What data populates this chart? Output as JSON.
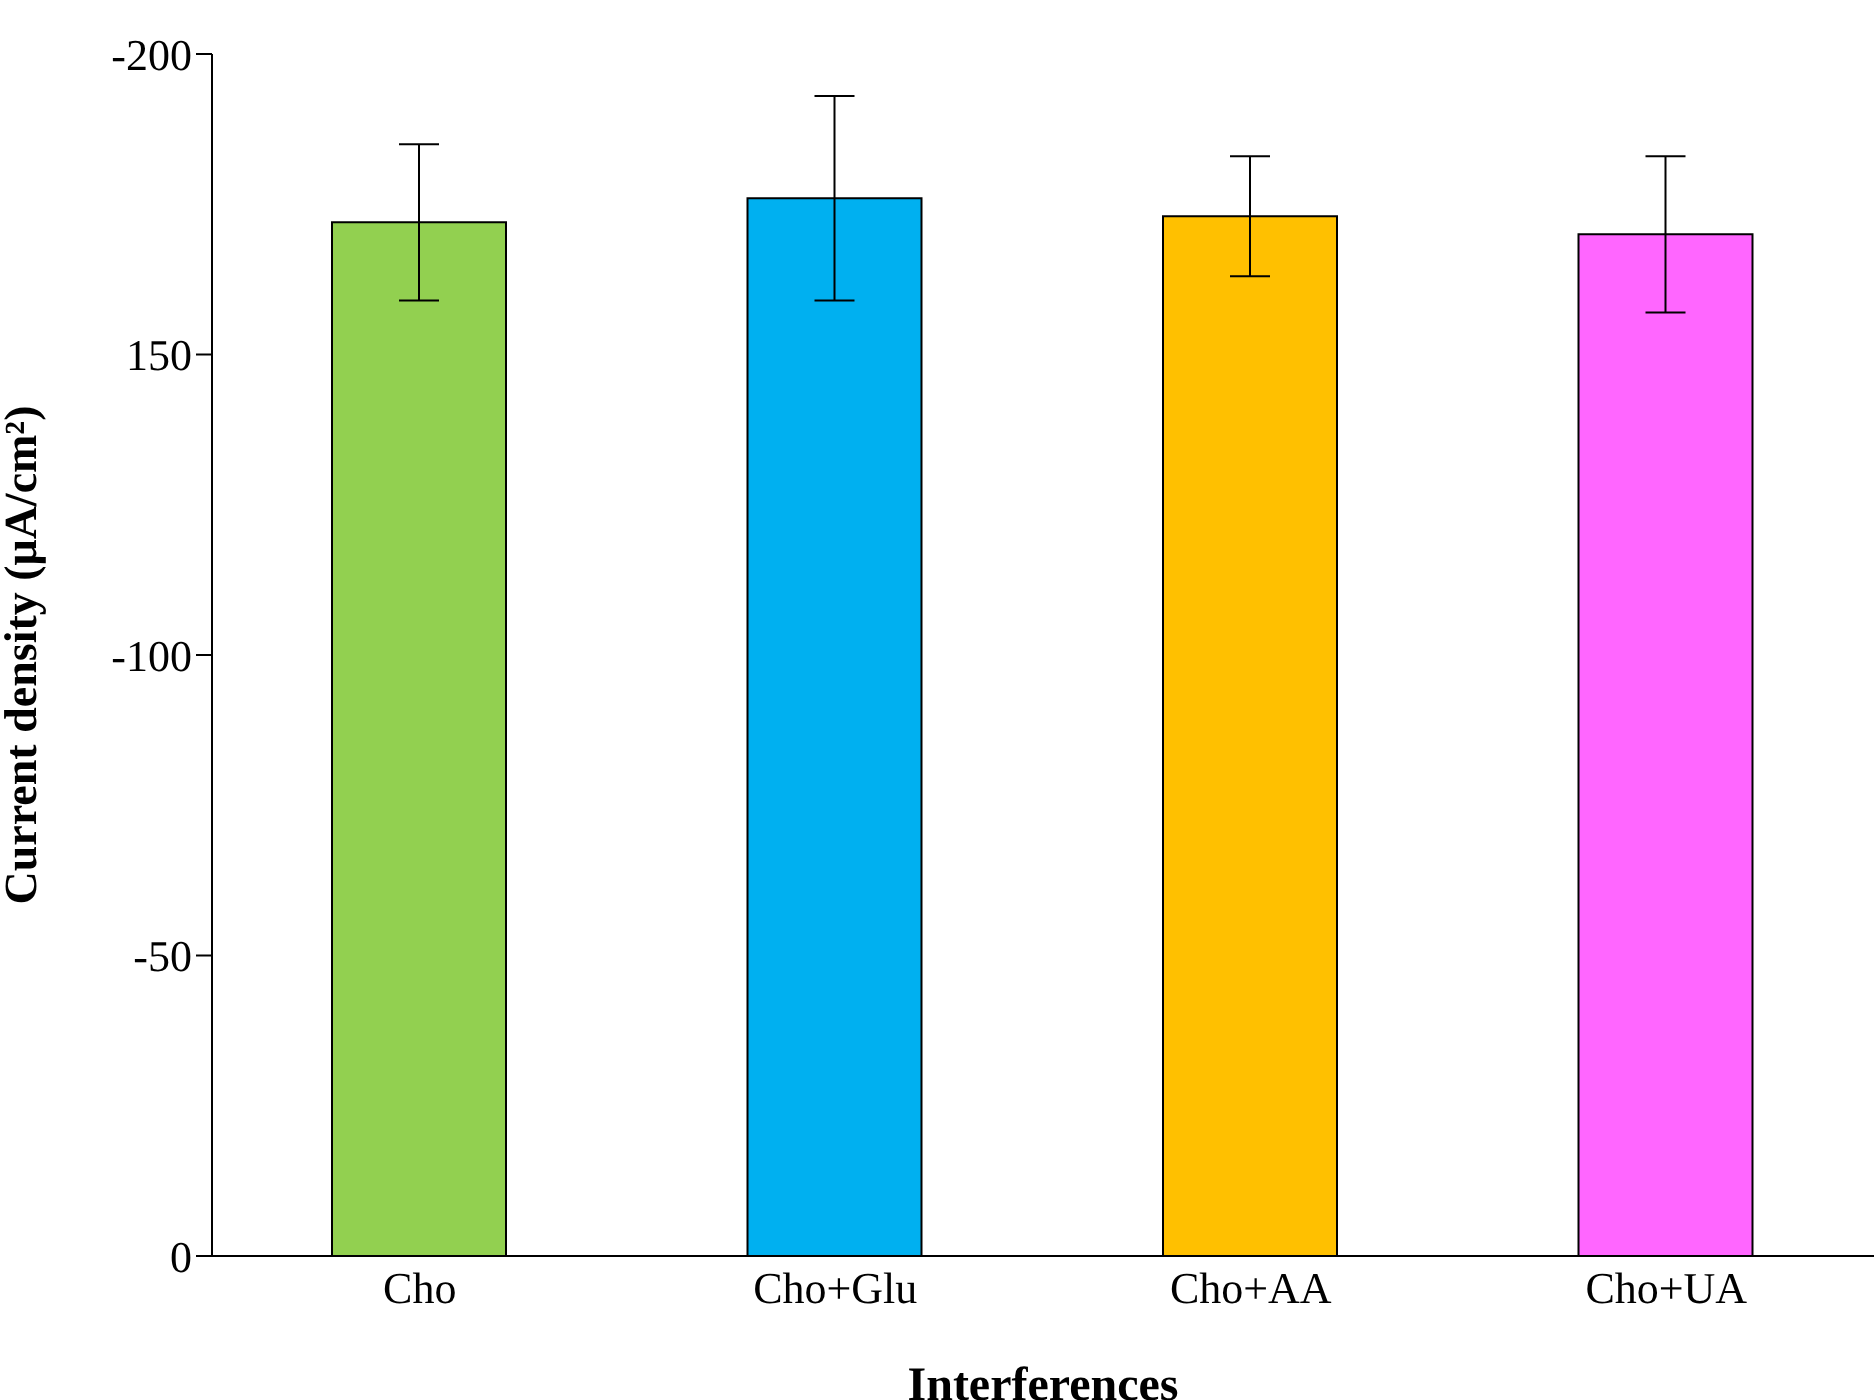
{
  "chart_data": {
    "type": "bar",
    "xlabel": "Interferences",
    "ylabel": "Current density (μA/cm²)",
    "categories": [
      "Cho",
      "Cho+Glu",
      "Cho+AA",
      "Cho+UA"
    ],
    "values": [
      -172,
      -176,
      -173,
      -170
    ],
    "errors": [
      13,
      17,
      10,
      13
    ],
    "colors": [
      "#92d050",
      "#00b0f0",
      "#ffc000",
      "#ff66ff"
    ],
    "ylim": [
      0,
      -200
    ],
    "yticks": [
      -200,
      {
        "value": -150,
        "label": "150"
      },
      -100,
      -50,
      0
    ],
    "grid": false,
    "legend": false
  }
}
